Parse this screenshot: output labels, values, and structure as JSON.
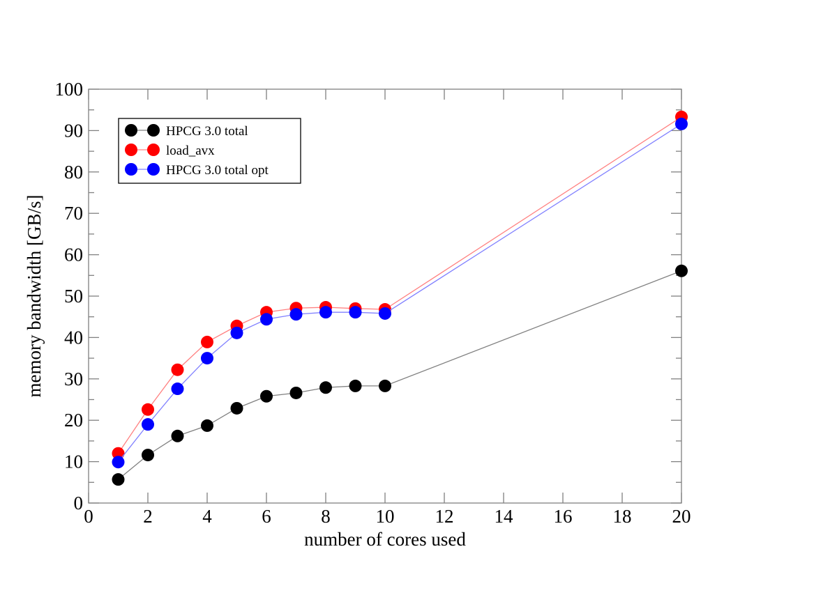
{
  "chart_data": {
    "type": "line",
    "title": "",
    "xlabel": "number of cores used",
    "ylabel": "memory bandwidth [GB/s]",
    "xlim": [
      0,
      20
    ],
    "ylim": [
      0,
      100
    ],
    "xticks": [
      0,
      2,
      4,
      6,
      8,
      10,
      12,
      14,
      16,
      18,
      20
    ],
    "yticks": [
      0,
      10,
      20,
      30,
      40,
      50,
      60,
      70,
      80,
      90,
      100
    ],
    "grid": false,
    "legend_position": "top-left",
    "x": [
      1,
      2,
      3,
      4,
      5,
      6,
      7,
      8,
      9,
      10,
      20
    ],
    "series": [
      {
        "name": "HPCG 3.0 total",
        "color": "#000000",
        "line_color": "#808080",
        "values": [
          5.7,
          11.6,
          16.2,
          18.7,
          22.9,
          25.8,
          26.6,
          27.9,
          28.3,
          28.3,
          56.1
        ]
      },
      {
        "name": "load_avx",
        "color": "#ff0000",
        "line_color": "#ff8080",
        "values": [
          12.0,
          22.6,
          32.2,
          38.9,
          42.8,
          46.1,
          47.1,
          47.3,
          47.0,
          46.8,
          93.3
        ]
      },
      {
        "name": "HPCG 3.0 total opt",
        "color": "#0000ff",
        "line_color": "#8080ff",
        "values": [
          9.9,
          19.0,
          27.6,
          35.0,
          41.1,
          44.4,
          45.6,
          46.1,
          46.1,
          45.8,
          91.6
        ]
      }
    ]
  }
}
